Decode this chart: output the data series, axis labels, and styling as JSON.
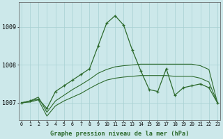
{
  "xlabel": "Graphe pression niveau de la mer (hPa)",
  "x": [
    0,
    1,
    2,
    3,
    4,
    5,
    6,
    7,
    8,
    9,
    10,
    11,
    12,
    13,
    14,
    15,
    16,
    17,
    18,
    19,
    20,
    21,
    22,
    23
  ],
  "y_main": [
    1007.0,
    1007.05,
    1007.1,
    1006.85,
    1007.3,
    1007.45,
    1007.6,
    1007.75,
    1007.9,
    1008.5,
    1009.1,
    1009.3,
    1009.05,
    1008.4,
    1007.85,
    1007.35,
    1007.3,
    1007.9,
    1007.2,
    1007.4,
    1007.45,
    1007.5,
    1007.4,
    1007.0
  ],
  "y_upper": [
    1007.0,
    1007.05,
    1007.15,
    1006.75,
    1007.05,
    1007.2,
    1007.35,
    1007.48,
    1007.62,
    1007.78,
    1007.88,
    1007.95,
    1007.98,
    1008.0,
    1008.02,
    1008.02,
    1008.02,
    1008.02,
    1008.02,
    1008.02,
    1008.02,
    1007.98,
    1007.88,
    1007.0
  ],
  "y_lower": [
    1007.0,
    1007.02,
    1007.08,
    1006.65,
    1006.92,
    1007.05,
    1007.15,
    1007.25,
    1007.38,
    1007.5,
    1007.6,
    1007.65,
    1007.68,
    1007.7,
    1007.72,
    1007.72,
    1007.72,
    1007.72,
    1007.7,
    1007.7,
    1007.7,
    1007.65,
    1007.55,
    1007.0
  ],
  "line_color": "#2d6a2d",
  "bg_color": "#cce8ea",
  "grid_color": "#a8d0d2",
  "yticks": [
    1007,
    1008,
    1009
  ],
  "ylim": [
    1006.55,
    1009.65
  ],
  "xlim": [
    -0.3,
    23.3
  ]
}
